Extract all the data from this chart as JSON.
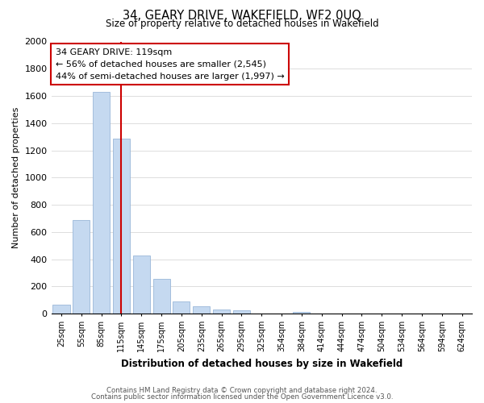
{
  "title": "34, GEARY DRIVE, WAKEFIELD, WF2 0UQ",
  "subtitle": "Size of property relative to detached houses in Wakefield",
  "xlabel": "Distribution of detached houses by size in Wakefield",
  "ylabel": "Number of detached properties",
  "bar_color": "#c5d9f0",
  "bar_edge_color": "#9ab7d8",
  "categories": [
    "25sqm",
    "55sqm",
    "85sqm",
    "115sqm",
    "145sqm",
    "175sqm",
    "205sqm",
    "235sqm",
    "265sqm",
    "295sqm",
    "325sqm",
    "354sqm",
    "384sqm",
    "414sqm",
    "444sqm",
    "474sqm",
    "504sqm",
    "534sqm",
    "564sqm",
    "594sqm",
    "624sqm"
  ],
  "values": [
    65,
    690,
    1630,
    1285,
    430,
    255,
    90,
    52,
    32,
    22,
    0,
    0,
    13,
    0,
    0,
    0,
    0,
    0,
    0,
    0,
    0
  ],
  "ylim": [
    0,
    2000
  ],
  "yticks": [
    0,
    200,
    400,
    600,
    800,
    1000,
    1200,
    1400,
    1600,
    1800,
    2000
  ],
  "annotation_title": "34 GEARY DRIVE: 119sqm",
  "annotation_line1": "← 56% of detached houses are smaller (2,545)",
  "annotation_line2": "44% of semi-detached houses are larger (1,997) →",
  "annotation_box_color": "#ffffff",
  "annotation_box_edge": "#cc0000",
  "vertical_line_index": 3,
  "vertical_line_color": "#cc0000",
  "footnote1": "Contains HM Land Registry data © Crown copyright and database right 2024.",
  "footnote2": "Contains public sector information licensed under the Open Government Licence v3.0.",
  "bg_color": "#ffffff",
  "grid_color": "#dddddd"
}
